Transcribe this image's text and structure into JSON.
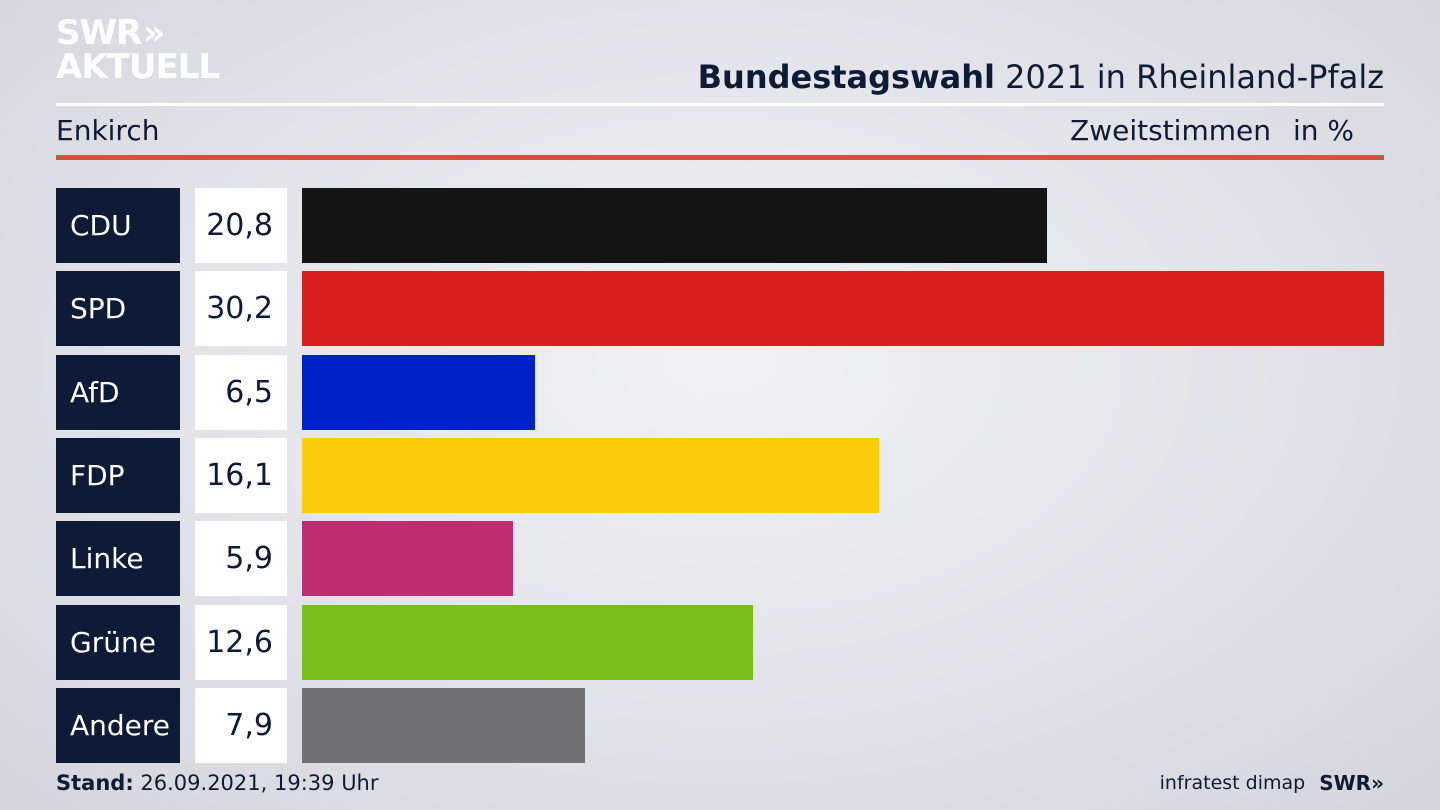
{
  "logo": {
    "line1": "SWR",
    "line2": "AKTUELL",
    "chevrons": "»"
  },
  "header": {
    "title_bold": "Bundestagswahl",
    "title_rest": "2021 in Rheinland-Pfalz",
    "location": "Enkirch",
    "vote_type": "Zweitstimmen",
    "unit": "in %"
  },
  "chart_data": {
    "type": "bar",
    "orientation": "horizontal",
    "title": "Bundestagswahl 2021 in Rheinland-Pfalz",
    "subtitle": "Enkirch",
    "ylabel": "Zweitstimmen in %",
    "categories": [
      "CDU",
      "SPD",
      "AfD",
      "FDP",
      "Linke",
      "Grüne",
      "Andere"
    ],
    "values": [
      20.8,
      30.2,
      6.5,
      16.1,
      5.9,
      12.6,
      7.9
    ],
    "value_labels": [
      "20,8",
      "30,2",
      "6,5",
      "16,1",
      "5,9",
      "12,6",
      "7,9"
    ],
    "colors": [
      "#141414",
      "#d82020",
      "#0020c8",
      "#fdcc0a",
      "#be2f72",
      "#7abe1c",
      "#727274"
    ],
    "xlim": [
      0,
      30.2
    ]
  },
  "footer": {
    "stand_label": "Stand:",
    "stand_value": "26.09.2021, 19:39 Uhr",
    "source": "infratest dimap",
    "brand": "SWR»"
  }
}
